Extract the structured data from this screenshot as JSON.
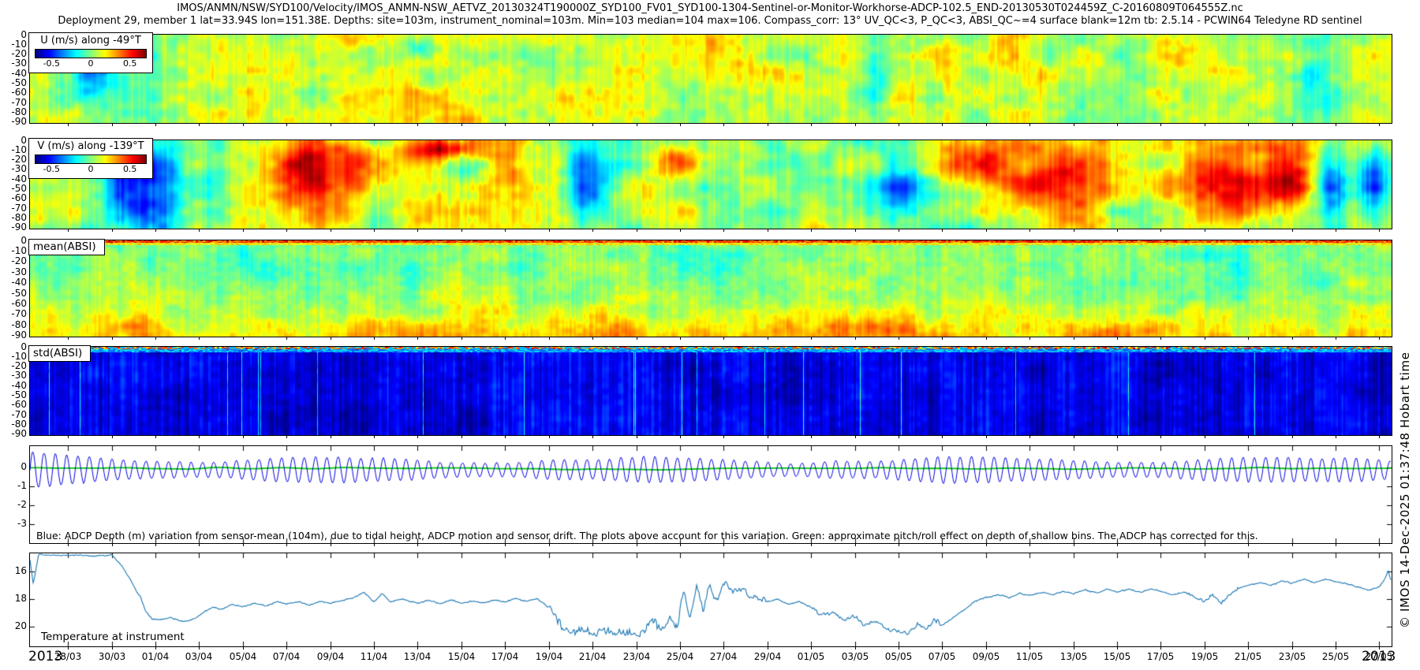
{
  "header": {
    "line1": "IMOS/ANMN/NSW/SYD100/Velocity/IMOS_ANMN-NSW_AETVZ_20130324T190000Z_SYD100_FV01_SYD100-1304-Sentinel-or-Monitor-Workhorse-ADCP-102.5_END-20130530T024459Z_C-20160809T064555Z.nc",
    "line2": "Deployment 29, member 1 lat=33.94S lon=151.38E. Depths: site=103m, instrument_nominal=103m. Min=103 median=104 max=106. Compass_corr: 13° UV_QC<3, P_QC<3, ABSI_QC~=4 surface blank=12m tb: 2.5.14 - PCWIN64 Teledyne RD sentinel"
  },
  "watermark": "© IMOS 14-Dec-2025 01:37:48 Hobart time",
  "depth_axis_ticks": [
    "0",
    "-10",
    "-20",
    "-30",
    "-40",
    "-50",
    "-60",
    "-70",
    "-80",
    "-90"
  ],
  "xaxis": {
    "year_left": "2013",
    "year_right": "2013",
    "first_tick_day": 1.74,
    "tick_step_days": 2,
    "total_days": 62.3,
    "tick_labels": [
      "28/03",
      "30/03",
      "01/04",
      "03/04",
      "05/04",
      "07/04",
      "09/04",
      "11/04",
      "13/04",
      "15/04",
      "17/04",
      "19/04",
      "21/04",
      "23/04",
      "25/04",
      "27/04",
      "29/04",
      "01/05",
      "03/05",
      "05/05",
      "07/05",
      "09/05",
      "11/05",
      "13/05",
      "15/05",
      "17/05",
      "19/05",
      "21/05",
      "23/05",
      "25/05",
      "27/05"
    ]
  },
  "chart_data": [
    {
      "id": "u",
      "type": "heatmap",
      "colormap": "jet",
      "legend_title": "U (m/s) along -49°T",
      "colorbar_ticks": [
        "-0.5",
        "0",
        "0.5"
      ],
      "depth_range_m": [
        0,
        -91
      ],
      "value_summary": "mostly 0 to +0.3 m/s (green-yellow) with sparse -0.2 to -0.4 m/s patches",
      "gen": {
        "seed": 11,
        "base": 0.56,
        "octaves": [
          {
            "sx": 46,
            "sy": 26,
            "amp": 0.085
          },
          {
            "sx": 12,
            "sy": 9,
            "amp": 0.05
          }
        ],
        "streaks": [
          {
            "scale": 3,
            "amp": 0.045
          },
          {
            "scale": 22,
            "amp": 0.05
          }
        ],
        "blobs": [
          [
            0.045,
            0.35,
            0.014,
            0.3,
            -0.3
          ],
          [
            0.075,
            0.55,
            0.04,
            0.45,
            -0.12
          ],
          [
            0.285,
            0.15,
            0.012,
            0.12,
            -0.22
          ],
          [
            0.62,
            0.45,
            0.014,
            0.45,
            -0.2
          ],
          [
            0.945,
            0.45,
            0.012,
            0.5,
            -0.17
          ],
          [
            0.2,
            0.2,
            0.05,
            0.25,
            0.09
          ],
          [
            0.47,
            0.2,
            0.05,
            0.3,
            0.1
          ],
          [
            0.3,
            0.75,
            0.06,
            0.3,
            0.06
          ],
          [
            0.715,
            0.4,
            0.05,
            0.5,
            0.07
          ],
          [
            0.845,
            0.25,
            0.035,
            0.25,
            0.08
          ]
        ]
      }
    },
    {
      "id": "v",
      "type": "heatmap",
      "colormap": "jet",
      "legend_title": "V (m/s) along -139°T",
      "colorbar_ticks": [
        "-0.5",
        "0",
        "0.5"
      ],
      "depth_range_m": [
        0,
        -91
      ],
      "value_summary": "alternating strong events: -0.6 m/s (dark blue) columns and +0.5 to +0.7 m/s (orange-red) patches",
      "gen": {
        "seed": 23,
        "base": 0.55,
        "octaves": [
          {
            "sx": 55,
            "sy": 30,
            "amp": 0.11
          },
          {
            "sx": 14,
            "sy": 10,
            "amp": 0.05
          }
        ],
        "streaks": [
          {
            "scale": 3,
            "amp": 0.05
          },
          {
            "scale": 26,
            "amp": 0.06
          }
        ],
        "blobs": [
          [
            0.085,
            0.5,
            0.022,
            0.6,
            -0.42
          ],
          [
            0.063,
            0.4,
            0.012,
            0.5,
            -0.25
          ],
          [
            0.215,
            0.25,
            0.035,
            0.35,
            0.42
          ],
          [
            0.19,
            0.7,
            0.03,
            0.3,
            0.2
          ],
          [
            0.3,
            0.12,
            0.03,
            0.12,
            0.3
          ],
          [
            0.35,
            0.3,
            0.012,
            0.25,
            0.25
          ],
          [
            0.405,
            0.45,
            0.012,
            0.5,
            -0.32
          ],
          [
            0.422,
            0.5,
            0.008,
            0.5,
            -0.2
          ],
          [
            0.47,
            0.2,
            0.02,
            0.2,
            0.18
          ],
          [
            0.64,
            0.4,
            0.018,
            0.5,
            -0.28
          ],
          [
            0.7,
            0.3,
            0.04,
            0.35,
            0.28
          ],
          [
            0.76,
            0.4,
            0.03,
            0.45,
            0.22
          ],
          [
            0.875,
            0.45,
            0.035,
            0.5,
            0.38
          ],
          [
            0.925,
            0.35,
            0.02,
            0.4,
            0.3
          ],
          [
            0.955,
            0.5,
            0.012,
            0.5,
            -0.3
          ],
          [
            0.985,
            0.5,
            0.01,
            0.5,
            -0.25
          ]
        ]
      }
    },
    {
      "id": "mean_absi",
      "type": "heatmap",
      "colormap": "jet",
      "label": "mean(ABSI)",
      "depth_range_m": [
        0,
        -91
      ],
      "value_summary": "green body, warm (yellow-orange) bottom bins, red-orange surface band",
      "gen": {
        "seed": 37,
        "base": 0.5,
        "vgrad": 0.14,
        "vpow": 2.2,
        "octaves": [
          {
            "sx": 30,
            "sy": 18,
            "amp": 0.06
          },
          {
            "sx": 8,
            "sy": 6,
            "amp": 0.035
          }
        ],
        "streaks": [
          {
            "scale": 2.5,
            "amp": 0.04
          },
          {
            "scale": 18,
            "amp": 0.035
          }
        ],
        "blobs": [
          [
            0.07,
            0.9,
            0.03,
            0.12,
            0.1
          ],
          [
            0.28,
            0.95,
            0.05,
            0.12,
            0.1
          ],
          [
            0.42,
            0.92,
            0.04,
            0.15,
            0.12
          ],
          [
            0.55,
            0.9,
            0.03,
            0.12,
            0.08
          ],
          [
            0.63,
            0.93,
            0.05,
            0.12,
            0.12
          ],
          [
            0.8,
            0.95,
            0.04,
            0.1,
            0.09
          ],
          [
            0.17,
            0.3,
            0.03,
            0.25,
            -0.08
          ],
          [
            0.5,
            0.3,
            0.04,
            0.3,
            -0.06
          ],
          [
            0.88,
            0.35,
            0.03,
            0.3,
            -0.07
          ]
        ],
        "top_bands": [
          {
            "rows": [
              0,
              2
            ],
            "tmin": 0.68,
            "tmax": 0.95,
            "density": 1
          },
          {
            "rows": [
              3,
              5
            ],
            "tmin": 0.55,
            "tmax": 0.72,
            "density": 1
          }
        ]
      }
    },
    {
      "id": "std_absi",
      "type": "heatmap",
      "colormap": "jet",
      "label": "std(ABSI)",
      "depth_range_m": [
        0,
        -91
      ],
      "value_summary": "low std (dark blue) with brighter blue vertical streaks, sparse cyan columns, mottled warm surface band",
      "gen": {
        "seed": 51,
        "base": 0.1,
        "octaves": [
          {
            "sx": 40,
            "sy": 30,
            "amp": 0.035
          },
          {
            "sx": 9,
            "sy": 7,
            "amp": 0.03
          }
        ],
        "streaks": [
          {
            "scale": 2.2,
            "amp": 0.07
          },
          {
            "scale": 30,
            "amp": 0.04
          }
        ],
        "bright_cols": {
          "prob": 0.012,
          "amp": 0.33
        },
        "top_bands": [
          {
            "rows": [
              0,
              2
            ],
            "tmin": 0.6,
            "tmax": 0.95,
            "density": 0.55,
            "else_t": 0.3
          },
          {
            "rows": [
              3,
              6
            ],
            "tmin": 0.18,
            "tmax": 0.4,
            "density": 1
          }
        ]
      }
    },
    {
      "id": "depth",
      "type": "line",
      "ylim": [
        1.12,
        -4.0
      ],
      "y_ticks": [
        "0",
        "-1",
        "-2",
        "-3"
      ],
      "note": "Blue: ADCP Depth (m) variation from sensor-mean (104m), due to tidal height, ADCP motion and sensor drift. The plots above account for this variation. Green: approximate pitch/roll effect on depth of shallow bins. The ADCP has corrected for this.",
      "series": [
        {
          "name": "adcp-depth-variation",
          "color": "#0000e0",
          "tidal_period_days": 0.5175,
          "mean_offset_m": -0.13,
          "amp_base_m": 0.38,
          "amp_springneap_m": 0.3,
          "springneap_period_days": 14.77
        },
        {
          "name": "pitch-roll-effect",
          "color": "#00c800",
          "level_m": -0.05,
          "wobble_m": 0.12
        }
      ]
    },
    {
      "id": "temp",
      "type": "line",
      "label": "Temperature at instrument",
      "ylim": [
        14.69,
        21.43
      ],
      "y_ticks": [
        "16",
        "18",
        "20"
      ],
      "color": "#1673b1",
      "base_noise": 0.06,
      "noise_regions": [
        [
          23.74,
          30,
          0.4
        ],
        [
          30,
          33.74,
          0.3
        ],
        [
          35.74,
          41.74,
          0.2
        ],
        [
          53,
          55.3,
          0.18
        ]
      ],
      "keypoints": [
        [
          0,
          15.2
        ],
        [
          0.15,
          16.9
        ],
        [
          0.4,
          14.75
        ],
        [
          1.2,
          14.85
        ],
        [
          2.2,
          14.8
        ],
        [
          3,
          14.9
        ],
        [
          3.74,
          14.8
        ],
        [
          4.2,
          15.6
        ],
        [
          4.6,
          16.6
        ],
        [
          4.9,
          17.5
        ],
        [
          5.05,
          17.8
        ],
        [
          5.3,
          18.9
        ],
        [
          5.6,
          19.45
        ],
        [
          6,
          19.5
        ],
        [
          6.4,
          19.3
        ],
        [
          6.8,
          19.55
        ],
        [
          7.2,
          19.65
        ],
        [
          7.6,
          19.35
        ],
        [
          8,
          18.9
        ],
        [
          8.4,
          18.6
        ],
        [
          8.8,
          18.75
        ],
        [
          9.2,
          18.4
        ],
        [
          9.74,
          18.55
        ],
        [
          10.3,
          18.3
        ],
        [
          10.8,
          18.5
        ],
        [
          11.3,
          18.2
        ],
        [
          11.74,
          18.35
        ],
        [
          12.3,
          18.2
        ],
        [
          12.8,
          18.45
        ],
        [
          13.3,
          18.15
        ],
        [
          13.74,
          18.3
        ],
        [
          14.3,
          18.1
        ],
        [
          14.8,
          17.9
        ],
        [
          15.3,
          17.5
        ],
        [
          15.74,
          18.25
        ],
        [
          16.1,
          17.6
        ],
        [
          16.5,
          18.2
        ],
        [
          17,
          18
        ],
        [
          17.74,
          18.3
        ],
        [
          18.3,
          18.1
        ],
        [
          18.8,
          18.35
        ],
        [
          19.3,
          18.05
        ],
        [
          19.74,
          18.3
        ],
        [
          20.3,
          18.15
        ],
        [
          20.8,
          18.3
        ],
        [
          21.3,
          18.05
        ],
        [
          21.74,
          18.25
        ],
        [
          22.2,
          17.95
        ],
        [
          22.7,
          18.15
        ],
        [
          23.2,
          18
        ],
        [
          23.74,
          18.6
        ],
        [
          24.1,
          19.3
        ],
        [
          24.4,
          20
        ],
        [
          24.8,
          20.4
        ],
        [
          25.2,
          20.1
        ],
        [
          25.74,
          20.5
        ],
        [
          26.3,
          20.2
        ],
        [
          26.74,
          20.55
        ],
        [
          27.2,
          20.3
        ],
        [
          27.74,
          20.6
        ],
        [
          28.1,
          20.2
        ],
        [
          28.5,
          19.6
        ],
        [
          28.9,
          20.3
        ],
        [
          29.3,
          19.4
        ],
        [
          29.6,
          19.9
        ],
        [
          29.9,
          17.6
        ],
        [
          30.2,
          19.5
        ],
        [
          30.5,
          17
        ],
        [
          30.8,
          18.9
        ],
        [
          31.1,
          16.9
        ],
        [
          31.4,
          18.3
        ],
        [
          31.74,
          16.8
        ],
        [
          32.1,
          17.4
        ],
        [
          32.5,
          17.2
        ],
        [
          33,
          17.8
        ],
        [
          33.5,
          18
        ],
        [
          33.74,
          18.2
        ],
        [
          34.2,
          18
        ],
        [
          34.7,
          18.4
        ],
        [
          35.2,
          18.2
        ],
        [
          35.74,
          18.6
        ],
        [
          36.2,
          19.2
        ],
        [
          36.7,
          18.9
        ],
        [
          37.2,
          19.5
        ],
        [
          37.74,
          19.3
        ],
        [
          38.2,
          19.9
        ],
        [
          38.7,
          19.6
        ],
        [
          39.2,
          20.1
        ],
        [
          39.74,
          20.3
        ],
        [
          40.2,
          20.5
        ],
        [
          40.6,
          19.8
        ],
        [
          41,
          20.2
        ],
        [
          41.4,
          19.5
        ],
        [
          41.74,
          19.9
        ],
        [
          42.3,
          19.3
        ],
        [
          42.8,
          18.7
        ],
        [
          43.2,
          18.2
        ],
        [
          43.74,
          17.9
        ],
        [
          44.3,
          17.7
        ],
        [
          44.8,
          17.9
        ],
        [
          45.3,
          17.6
        ],
        [
          45.74,
          17.75
        ],
        [
          46.3,
          17.5
        ],
        [
          46.8,
          17.7
        ],
        [
          47.3,
          17.45
        ],
        [
          47.74,
          17.6
        ],
        [
          48.3,
          17.35
        ],
        [
          48.8,
          17.55
        ],
        [
          49.3,
          17.3
        ],
        [
          49.74,
          17.5
        ],
        [
          50.3,
          17.3
        ],
        [
          50.8,
          17.5
        ],
        [
          51.3,
          17.25
        ],
        [
          51.74,
          17.45
        ],
        [
          52.3,
          17.7
        ],
        [
          52.8,
          17.5
        ],
        [
          53.3,
          17.9
        ],
        [
          53.74,
          18.1
        ],
        [
          54.1,
          17.7
        ],
        [
          54.5,
          18.3
        ],
        [
          54.9,
          17.6
        ],
        [
          55.3,
          17.2
        ],
        [
          55.74,
          17
        ],
        [
          56.3,
          16.8
        ],
        [
          56.8,
          17
        ],
        [
          57.3,
          16.7
        ],
        [
          57.74,
          16.85
        ],
        [
          58.3,
          16.6
        ],
        [
          58.8,
          16.8
        ],
        [
          59.3,
          16.55
        ],
        [
          59.74,
          16.75
        ],
        [
          60.3,
          16.9
        ],
        [
          60.8,
          17.15
        ],
        [
          61.3,
          17.35
        ],
        [
          61.74,
          17.1
        ],
        [
          62,
          16.5
        ],
        [
          62.15,
          15.95
        ],
        [
          62.3,
          16.8
        ]
      ]
    }
  ]
}
